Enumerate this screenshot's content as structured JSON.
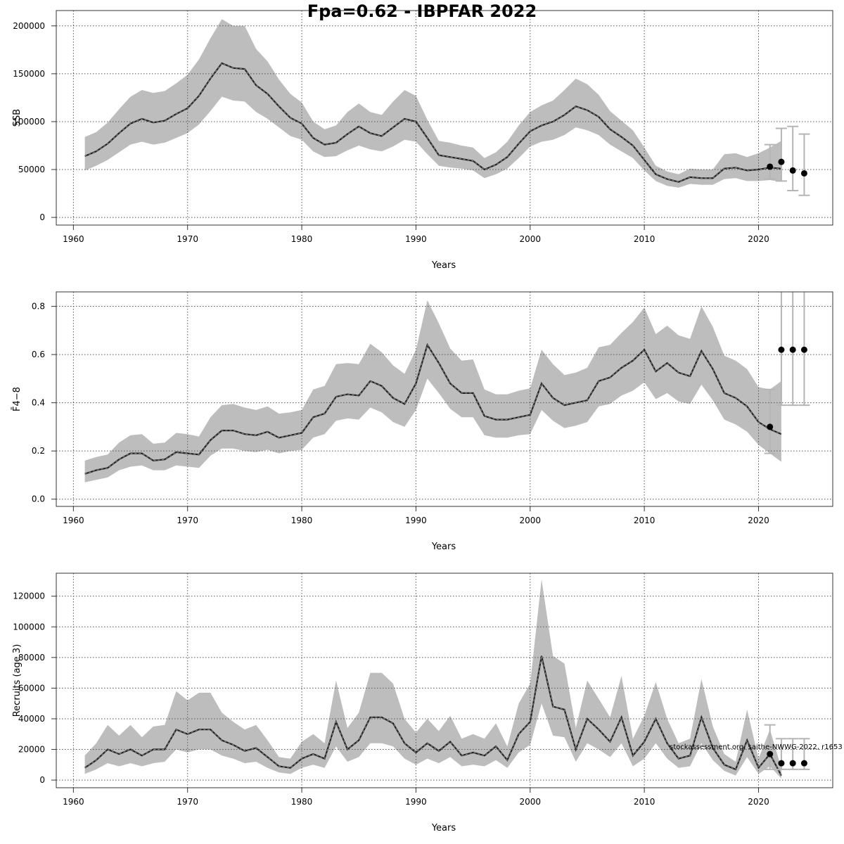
{
  "title": "Fpa=0.62 - IBPFAR 2022",
  "watermark": "stockassessment.org, saithe-NWWG-2022, r1653",
  "colors": {
    "band": "#bdbdbd",
    "line": "#222222",
    "point": "#000000",
    "error_bar": "#b5b5b5",
    "grid": "#555555"
  },
  "chart_data": [
    {
      "type": "line",
      "ylabel": "SSB",
      "xlabel": "Years",
      "xlim": [
        1958.5,
        2026.5
      ],
      "ylim": [
        -8000,
        216000
      ],
      "xticks": [
        1960,
        1970,
        1980,
        1990,
        2000,
        2010,
        2020
      ],
      "yticks": [
        0,
        50000,
        100000,
        150000,
        200000
      ],
      "ytick_labels": [
        "0",
        "50000",
        "100000",
        "150000",
        "200000"
      ],
      "grid": true,
      "x": [
        1961,
        1962,
        1963,
        1964,
        1965,
        1966,
        1967,
        1968,
        1969,
        1970,
        1971,
        1972,
        1973,
        1974,
        1975,
        1976,
        1977,
        1978,
        1979,
        1980,
        1981,
        1982,
        1983,
        1984,
        1985,
        1986,
        1987,
        1988,
        1989,
        1990,
        1991,
        1992,
        1993,
        1994,
        1995,
        1996,
        1997,
        1998,
        1999,
        2000,
        2001,
        2002,
        2003,
        2004,
        2005,
        2006,
        2007,
        2008,
        2009,
        2010,
        2011,
        2012,
        2013,
        2014,
        2015,
        2016,
        2017,
        2018,
        2019,
        2020,
        2021,
        2022
      ],
      "estimate": [
        64000,
        69000,
        77000,
        88000,
        98000,
        103000,
        99000,
        101000,
        108000,
        114000,
        127000,
        145000,
        161000,
        156000,
        155000,
        138000,
        129000,
        116000,
        104000,
        98000,
        83000,
        76000,
        78000,
        87000,
        95000,
        88000,
        85000,
        94000,
        103000,
        100000,
        83000,
        65000,
        63000,
        61000,
        59000,
        50000,
        55000,
        63000,
        77000,
        90000,
        96000,
        100000,
        107000,
        116000,
        112000,
        105000,
        92000,
        84000,
        75000,
        60000,
        45000,
        40000,
        37000,
        42000,
        41000,
        41000,
        51000,
        52000,
        49000,
        50000,
        52000,
        51000
      ],
      "lower": [
        49000,
        54000,
        60000,
        68000,
        76000,
        79000,
        76000,
        78000,
        83000,
        88000,
        97000,
        111000,
        126000,
        122000,
        121000,
        110000,
        103000,
        94000,
        85000,
        81000,
        69000,
        63000,
        64000,
        70000,
        75000,
        71000,
        69000,
        74000,
        81000,
        79000,
        66000,
        54000,
        52000,
        51000,
        49000,
        41000,
        45000,
        51000,
        62000,
        74000,
        79000,
        81000,
        86000,
        94000,
        91000,
        86000,
        76000,
        69000,
        62000,
        49000,
        38000,
        33000,
        31000,
        35000,
        34000,
        34000,
        40000,
        41000,
        38000,
        38000,
        39000,
        37000
      ],
      "upper": [
        84000,
        89000,
        99000,
        113000,
        126000,
        133000,
        130000,
        132000,
        140000,
        149000,
        165000,
        187000,
        207000,
        200000,
        200000,
        176000,
        163000,
        144000,
        129000,
        120000,
        100000,
        92000,
        96000,
        110000,
        119000,
        110000,
        107000,
        121000,
        133000,
        127000,
        102000,
        80000,
        78000,
        75000,
        73000,
        62000,
        68000,
        79000,
        96000,
        110000,
        117000,
        122000,
        133000,
        145000,
        139000,
        128000,
        111000,
        101000,
        91000,
        73000,
        54000,
        48000,
        45000,
        51000,
        50000,
        50000,
        66000,
        67000,
        63000,
        67000,
        73000,
        80000
      ],
      "forecast": [
        {
          "year": 2021,
          "value": 53000,
          "low": 40000,
          "high": 76000
        },
        {
          "year": 2022,
          "value": 58000,
          "low": 38000,
          "high": 93000
        },
        {
          "year": 2023,
          "value": 49000,
          "low": 28000,
          "high": 95000
        },
        {
          "year": 2024,
          "value": 46000,
          "low": 23000,
          "high": 87000
        }
      ]
    },
    {
      "type": "line",
      "ylabel": "F̄4−8",
      "xlabel": "Years",
      "xlim": [
        1958.5,
        2026.5
      ],
      "ylim": [
        -0.03,
        0.86
      ],
      "xticks": [
        1960,
        1970,
        1980,
        1990,
        2000,
        2010,
        2020
      ],
      "yticks": [
        0,
        0.2,
        0.4,
        0.6,
        0.8
      ],
      "ytick_labels": [
        "0.0",
        "0.2",
        "0.4",
        "0.6",
        "0.8"
      ],
      "grid": true,
      "x": [
        1961,
        1962,
        1963,
        1964,
        1965,
        1966,
        1967,
        1968,
        1969,
        1970,
        1971,
        1972,
        1973,
        1974,
        1975,
        1976,
        1977,
        1978,
        1979,
        1980,
        1981,
        1982,
        1983,
        1984,
        1985,
        1986,
        1987,
        1988,
        1989,
        1990,
        1991,
        1992,
        1993,
        1994,
        1995,
        1996,
        1997,
        1998,
        1999,
        2000,
        2001,
        2002,
        2003,
        2004,
        2005,
        2006,
        2007,
        2008,
        2009,
        2010,
        2011,
        2012,
        2013,
        2014,
        2015,
        2016,
        2017,
        2018,
        2019,
        2020,
        2021,
        2022
      ],
      "estimate": [
        0.105,
        0.12,
        0.13,
        0.165,
        0.19,
        0.19,
        0.16,
        0.165,
        0.195,
        0.19,
        0.185,
        0.245,
        0.285,
        0.285,
        0.27,
        0.265,
        0.28,
        0.255,
        0.265,
        0.275,
        0.34,
        0.355,
        0.425,
        0.435,
        0.43,
        0.49,
        0.47,
        0.42,
        0.395,
        0.48,
        0.64,
        0.565,
        0.48,
        0.44,
        0.44,
        0.345,
        0.33,
        0.33,
        0.34,
        0.35,
        0.48,
        0.42,
        0.39,
        0.4,
        0.41,
        0.49,
        0.505,
        0.545,
        0.575,
        0.62,
        0.53,
        0.565,
        0.525,
        0.51,
        0.615,
        0.54,
        0.44,
        0.42,
        0.385,
        0.32,
        0.29,
        0.27
      ],
      "lower": [
        0.07,
        0.08,
        0.09,
        0.12,
        0.135,
        0.14,
        0.12,
        0.12,
        0.14,
        0.135,
        0.13,
        0.18,
        0.21,
        0.21,
        0.2,
        0.195,
        0.205,
        0.19,
        0.2,
        0.205,
        0.255,
        0.27,
        0.325,
        0.335,
        0.33,
        0.38,
        0.36,
        0.32,
        0.3,
        0.37,
        0.5,
        0.44,
        0.375,
        0.34,
        0.34,
        0.265,
        0.255,
        0.255,
        0.265,
        0.27,
        0.37,
        0.325,
        0.295,
        0.305,
        0.32,
        0.385,
        0.395,
        0.43,
        0.45,
        0.485,
        0.415,
        0.44,
        0.405,
        0.395,
        0.475,
        0.41,
        0.33,
        0.31,
        0.28,
        0.225,
        0.19,
        0.155
      ],
      "upper": [
        0.16,
        0.175,
        0.185,
        0.235,
        0.265,
        0.27,
        0.23,
        0.235,
        0.275,
        0.27,
        0.26,
        0.34,
        0.39,
        0.395,
        0.38,
        0.37,
        0.385,
        0.355,
        0.36,
        0.37,
        0.455,
        0.47,
        0.56,
        0.565,
        0.56,
        0.645,
        0.61,
        0.555,
        0.52,
        0.62,
        0.825,
        0.73,
        0.625,
        0.575,
        0.58,
        0.455,
        0.435,
        0.435,
        0.45,
        0.46,
        0.62,
        0.56,
        0.515,
        0.525,
        0.545,
        0.63,
        0.64,
        0.69,
        0.735,
        0.795,
        0.685,
        0.72,
        0.68,
        0.665,
        0.8,
        0.715,
        0.595,
        0.575,
        0.54,
        0.465,
        0.455,
        0.49
      ],
      "forecast": [
        {
          "year": 2021,
          "value": 0.3,
          "low": 0.19,
          "high": 0.455
        },
        {
          "year": 2022,
          "value": 0.62,
          "low": 0.39,
          "high": 1.2
        },
        {
          "year": 2023,
          "value": 0.62,
          "low": 0.39,
          "high": 1.2
        },
        {
          "year": 2024,
          "value": 0.62,
          "low": 0.39,
          "high": 1.2
        }
      ]
    },
    {
      "type": "line",
      "ylabel": "Recruits (age 3)",
      "xlabel": "Years",
      "xlim": [
        1958.5,
        2026.5
      ],
      "ylim": [
        -5000,
        135000
      ],
      "xticks": [
        1960,
        1970,
        1980,
        1990,
        2000,
        2010,
        2020
      ],
      "yticks": [
        0,
        20000,
        40000,
        60000,
        80000,
        100000,
        120000
      ],
      "ytick_labels": [
        "0",
        "20000",
        "40000",
        "60000",
        "80000",
        "100000",
        "120000"
      ],
      "grid": true,
      "x": [
        1961,
        1962,
        1963,
        1964,
        1965,
        1966,
        1967,
        1968,
        1969,
        1970,
        1971,
        1972,
        1973,
        1974,
        1975,
        1976,
        1977,
        1978,
        1979,
        1980,
        1981,
        1982,
        1983,
        1984,
        1985,
        1986,
        1987,
        1988,
        1989,
        1990,
        1991,
        1992,
        1993,
        1994,
        1995,
        1996,
        1997,
        1998,
        1999,
        2000,
        2001,
        2002,
        2003,
        2004,
        2005,
        2006,
        2007,
        2008,
        2009,
        2010,
        2011,
        2012,
        2013,
        2014,
        2015,
        2016,
        2017,
        2018,
        2019,
        2020,
        2021,
        2022
      ],
      "estimate": [
        8000,
        13000,
        20000,
        17000,
        20000,
        16000,
        20000,
        20000,
        33000,
        30000,
        33000,
        33000,
        26000,
        23000,
        19000,
        21000,
        15000,
        9000,
        8000,
        14000,
        17000,
        14000,
        38000,
        20000,
        26000,
        41000,
        41000,
        37000,
        24000,
        18000,
        24000,
        19000,
        25000,
        16000,
        18000,
        16000,
        22000,
        13000,
        30000,
        38000,
        81000,
        48000,
        46000,
        20000,
        40000,
        33000,
        25000,
        41000,
        16000,
        25000,
        40000,
        24000,
        14000,
        16000,
        41000,
        21000,
        10000,
        7000,
        26000,
        8000,
        17000,
        3000
      ],
      "lower": [
        4000,
        7000,
        11000,
        9000,
        11000,
        9000,
        11000,
        12000,
        20000,
        18000,
        20000,
        20000,
        16000,
        14000,
        11000,
        12000,
        8000,
        5000,
        4000,
        8000,
        10000,
        8000,
        22000,
        12000,
        15000,
        24000,
        24000,
        22000,
        14000,
        10000,
        14000,
        11000,
        15000,
        9000,
        10000,
        9000,
        13000,
        8000,
        18000,
        23000,
        50000,
        29000,
        28000,
        12000,
        24000,
        20000,
        15000,
        24000,
        9000,
        14000,
        24000,
        14000,
        8000,
        9000,
        24000,
        13000,
        6000,
        3000,
        15000,
        4000,
        9000,
        1000
      ],
      "upper": [
        16000,
        24000,
        36000,
        29000,
        36000,
        28000,
        35000,
        36000,
        58000,
        52000,
        57000,
        57000,
        44000,
        38000,
        33000,
        36000,
        26000,
        15000,
        14000,
        25000,
        30000,
        24000,
        65000,
        34000,
        44000,
        70000,
        70000,
        63000,
        40000,
        31000,
        40000,
        32000,
        42000,
        27000,
        30000,
        27000,
        37000,
        22000,
        50000,
        63000,
        131000,
        81000,
        76000,
        34000,
        65000,
        53000,
        41000,
        68000,
        27000,
        42000,
        64000,
        40000,
        24000,
        27000,
        66000,
        35000,
        17000,
        12000,
        46000,
        14000,
        33000,
        8000
      ],
      "forecast": [
        {
          "year": 2021,
          "value": 17000,
          "low": 7000,
          "high": 36000
        },
        {
          "year": 2022,
          "value": 11000,
          "low": 7000,
          "high": 27000
        },
        {
          "year": 2023,
          "value": 11000,
          "low": 7000,
          "high": 27000
        },
        {
          "year": 2024,
          "value": 11000,
          "low": 7000,
          "high": 27000
        }
      ]
    }
  ]
}
